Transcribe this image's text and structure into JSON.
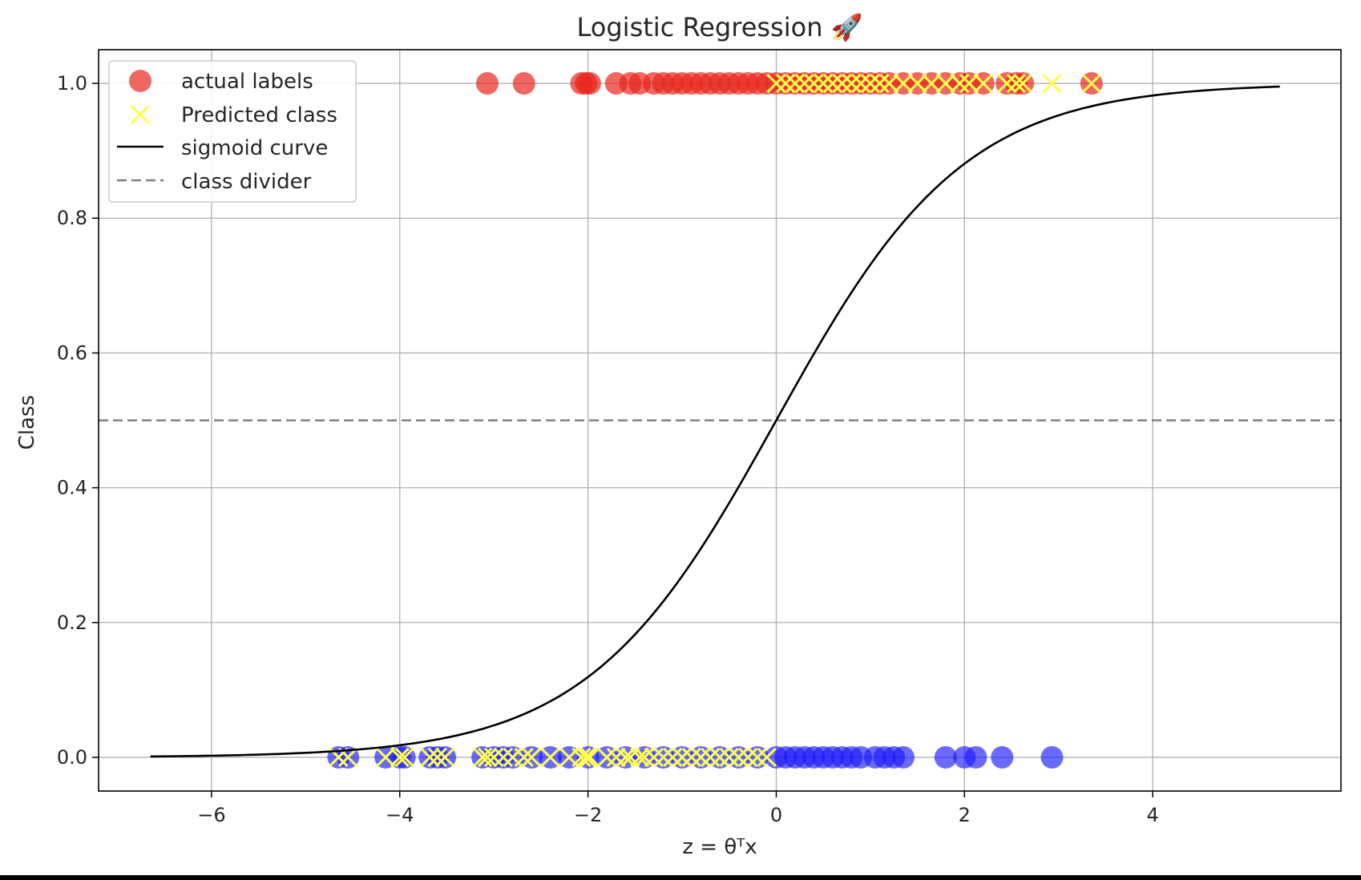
{
  "chart_data": {
    "type": "scatter",
    "title": "Logistic Regression 🚀",
    "xlabel": "z = θᵀx",
    "ylabel": "Class",
    "xlim": [
      -7.2,
      6.0
    ],
    "ylim": [
      -0.05,
      1.05
    ],
    "x_ticks": [
      -6,
      -4,
      -2,
      0,
      2,
      4
    ],
    "x_tick_labels": [
      "−6",
      "−4",
      "−2",
      "0",
      "2",
      "4"
    ],
    "y_ticks": [
      0.0,
      0.2,
      0.4,
      0.6,
      0.8,
      1.0
    ],
    "y_tick_labels": [
      "0.0",
      "0.2",
      "0.4",
      "0.6",
      "0.8",
      "1.0"
    ],
    "grid": true,
    "legend_position": "top-left",
    "colors": {
      "class1": "#e8261c",
      "class0": "#1a1aff",
      "predicted": "#ffff4d",
      "sigmoid": "#000000",
      "divider": "#808080"
    },
    "series": [
      {
        "name": "actual labels",
        "kind": "points",
        "class1_x": [
          -3.07,
          -2.68,
          -2.07,
          -2.02,
          -1.98,
          -1.7,
          -1.55,
          -1.45,
          -1.3,
          -1.2,
          -1.1,
          -1.0,
          -0.9,
          -0.8,
          -0.7,
          -0.6,
          -0.5,
          -0.4,
          -0.3,
          -0.2,
          -0.1,
          0.0,
          0.1,
          0.2,
          0.3,
          0.4,
          0.5,
          0.6,
          0.7,
          0.8,
          0.9,
          1.0,
          1.1,
          1.2,
          1.35,
          1.5,
          1.65,
          1.8,
          1.95,
          2.05,
          2.2,
          2.45,
          2.55,
          2.62,
          3.35
        ],
        "class0_x": [
          -4.65,
          -4.55,
          -4.15,
          -4.0,
          -3.95,
          -3.68,
          -3.6,
          -3.52,
          -3.12,
          -3.0,
          -2.9,
          -2.8,
          -2.6,
          -2.4,
          -2.2,
          -2.0,
          -1.8,
          -1.6,
          -1.4,
          -1.2,
          -1.0,
          -0.8,
          -0.6,
          -0.4,
          -0.2,
          0.0,
          0.1,
          0.2,
          0.3,
          0.4,
          0.5,
          0.6,
          0.7,
          0.8,
          0.9,
          1.05,
          1.15,
          1.25,
          1.35,
          1.8,
          2.0,
          2.12,
          2.4,
          2.93
        ]
      },
      {
        "name": "Predicted class",
        "kind": "markers",
        "class1_x": [
          0.0,
          0.1,
          0.2,
          0.3,
          0.4,
          0.5,
          0.6,
          0.7,
          0.8,
          0.9,
          1.0,
          1.1,
          1.2,
          1.35,
          1.5,
          1.65,
          1.8,
          1.95,
          2.05,
          2.2,
          2.45,
          2.55,
          2.62,
          2.93,
          3.35
        ],
        "class0_x": [
          -4.65,
          -4.55,
          -4.15,
          -4.0,
          -3.95,
          -3.68,
          -3.6,
          -3.52,
          -3.12,
          -3.07,
          -3.0,
          -2.9,
          -2.8,
          -2.68,
          -2.6,
          -2.4,
          -2.2,
          -2.07,
          -2.02,
          -2.0,
          -1.98,
          -1.8,
          -1.7,
          -1.6,
          -1.55,
          -1.45,
          -1.4,
          -1.3,
          -1.2,
          -1.1,
          -1.0,
          -0.9,
          -0.8,
          -0.7,
          -0.6,
          -0.5,
          -0.4,
          -0.3,
          -0.2,
          -0.1
        ]
      },
      {
        "name": "sigmoid curve",
        "kind": "function",
        "function": "sigmoid",
        "x_range": [
          -6.65,
          5.35
        ]
      },
      {
        "name": "class divider",
        "kind": "hline",
        "y": 0.5
      }
    ]
  }
}
